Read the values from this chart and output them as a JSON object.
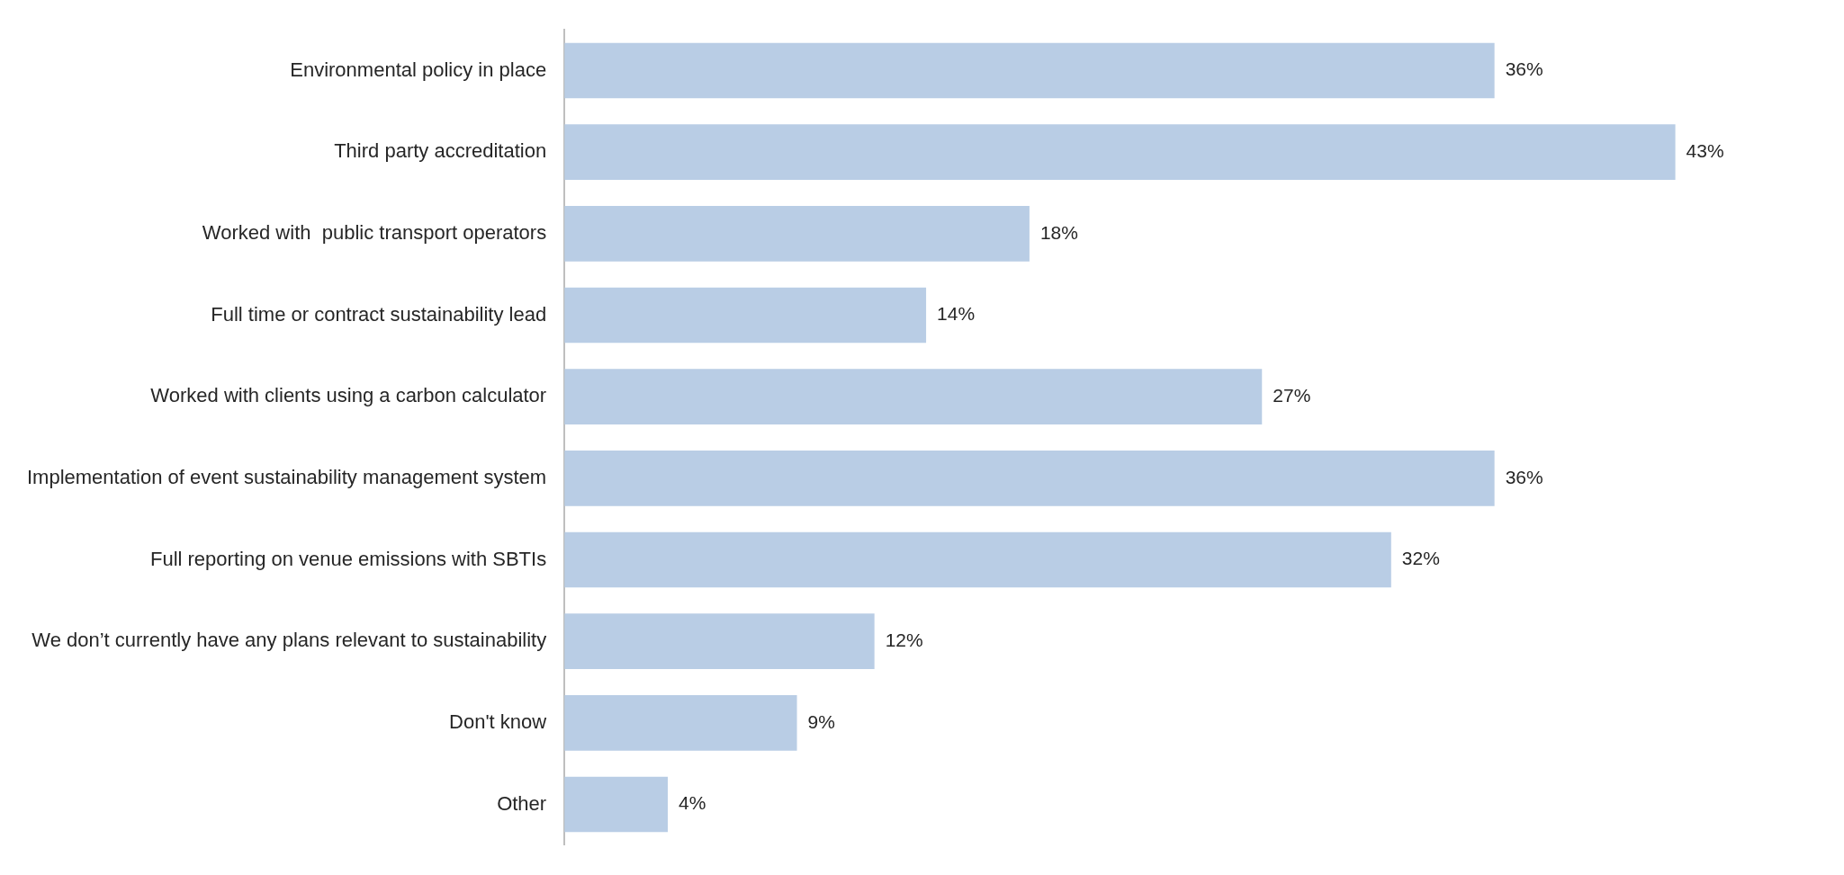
{
  "chart_data": {
    "type": "bar",
    "orientation": "horizontal",
    "categories": [
      "Environmental policy in place",
      "Third party accreditation",
      "Worked with  public transport operators",
      "Full time or contract sustainability lead",
      "Worked with clients using a carbon calculator",
      "Implementation of event sustainability management system",
      "Full reporting on venue emissions with SBTIs",
      "We don’t currently have any plans relevant to sustainability",
      "Don't know",
      "Other"
    ],
    "values": [
      36,
      43,
      18,
      14,
      27,
      36,
      32,
      12,
      9,
      4
    ],
    "value_labels": [
      "36%",
      "43%",
      "18%",
      "14%",
      "27%",
      "36%",
      "32%",
      "12%",
      "9%",
      "4%"
    ],
    "color": "#b9cde5",
    "legend": false
  }
}
